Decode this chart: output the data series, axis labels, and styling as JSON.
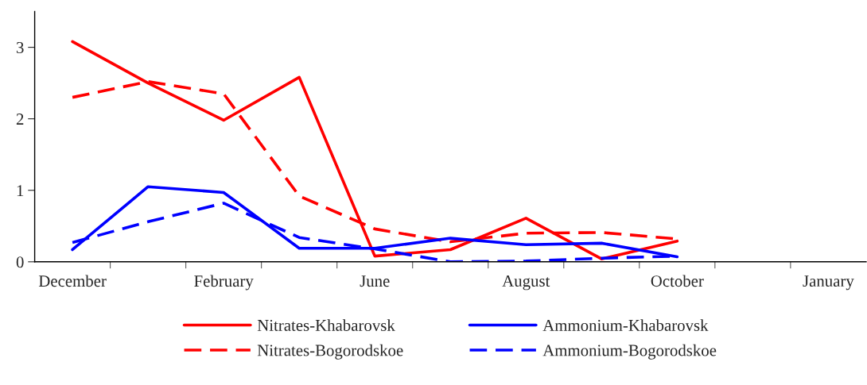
{
  "chart_data": {
    "type": "line",
    "categories": [
      "December",
      null,
      "February",
      null,
      "June",
      null,
      "August",
      null,
      "October",
      null,
      "January"
    ],
    "series": [
      {
        "name": "Nitrates-Khabarovsk",
        "color": "#ff0000",
        "line_style": "solid",
        "values": [
          3.08,
          2.5,
          1.98,
          2.58,
          0.08,
          0.17,
          0.61,
          0.04,
          0.29,
          null,
          null
        ]
      },
      {
        "name": "Nitrates-Bogorodskoe",
        "color": "#ff0000",
        "line_style": "dashed",
        "values": [
          2.3,
          2.52,
          2.35,
          0.92,
          0.46,
          0.28,
          0.4,
          0.41,
          0.32,
          null,
          null
        ]
      },
      {
        "name": "Ammonium-Khabarovsk",
        "color": "#0000ff",
        "line_style": "solid",
        "values": [
          0.17,
          1.05,
          0.97,
          0.19,
          0.19,
          0.33,
          0.24,
          0.26,
          0.07,
          null,
          null
        ]
      },
      {
        "name": "Ammonium-Bogorodskoe",
        "color": "#0000ff",
        "line_style": "dashed",
        "values": [
          0.27,
          0.56,
          0.82,
          0.34,
          0.18,
          0.0,
          0.01,
          0.05,
          0.08,
          null,
          null
        ]
      }
    ],
    "ylim": [
      0,
      3.5
    ],
    "yticks": [
      0,
      1,
      2,
      3
    ],
    "grid": false,
    "legend": "bottom",
    "marker": "none"
  }
}
